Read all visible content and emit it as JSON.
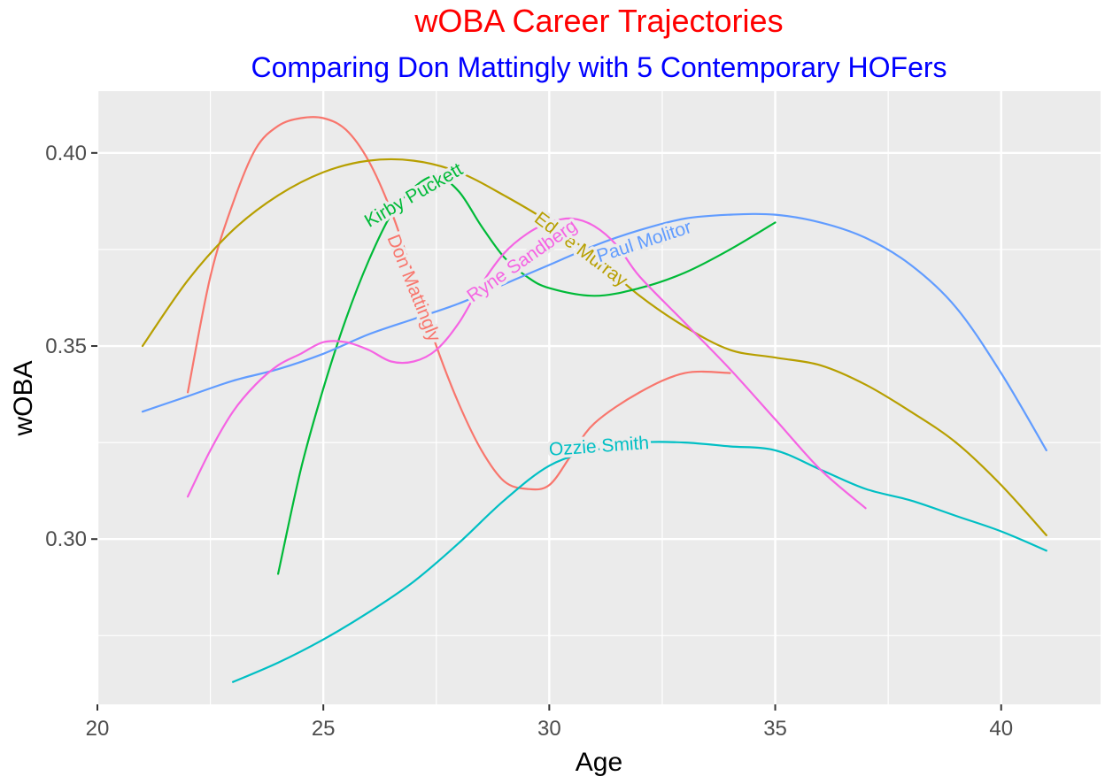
{
  "title": "wOBA Career Trajectories",
  "subtitle": "Comparing Don Mattingly with 5 Contemporary HOFers",
  "colors": {
    "title": "#ff0000",
    "subtitle": "#0000ff",
    "panel": "#ebebeb",
    "grid": "#ffffff"
  },
  "chart_data": {
    "type": "line",
    "xlabel": "Age",
    "ylabel": "wOBA",
    "xlim": [
      20,
      42.2
    ],
    "ylim": [
      0.2572,
      0.416
    ],
    "x_ticks": [
      20,
      25,
      30,
      35,
      40
    ],
    "x_tick_labels": [
      "20",
      "25",
      "30",
      "35",
      "40"
    ],
    "y_ticks": [
      0.3,
      0.35,
      0.4
    ],
    "y_tick_labels": [
      "0.30",
      "0.35",
      "0.40"
    ],
    "grid": true,
    "legend": "none",
    "series": [
      {
        "name": "Don Mattingly",
        "color": "#f8766d",
        "label_position": {
          "x": 27.0,
          "y": 0.365,
          "angle": 68
        },
        "points": [
          [
            22,
            0.338
          ],
          [
            22.5,
            0.368
          ],
          [
            23,
            0.387
          ],
          [
            23.5,
            0.401
          ],
          [
            24,
            0.407
          ],
          [
            24.5,
            0.409
          ],
          [
            25,
            0.409
          ],
          [
            25.5,
            0.406
          ],
          [
            26,
            0.398
          ],
          [
            26.5,
            0.385
          ],
          [
            27,
            0.368
          ],
          [
            27.5,
            0.35
          ],
          [
            28,
            0.335
          ],
          [
            28.5,
            0.323
          ],
          [
            29,
            0.315
          ],
          [
            29.5,
            0.313
          ],
          [
            30,
            0.314
          ],
          [
            30.5,
            0.322
          ],
          [
            31,
            0.33
          ],
          [
            32,
            0.338
          ],
          [
            33,
            0.343
          ],
          [
            34,
            0.343
          ]
        ]
      },
      {
        "name": "Eddie Murray",
        "color": "#b79f00",
        "label_position": {
          "x": 30.7,
          "y": 0.375,
          "angle": 37
        },
        "points": [
          [
            21,
            0.35
          ],
          [
            22,
            0.367
          ],
          [
            23,
            0.38
          ],
          [
            24,
            0.389
          ],
          [
            25,
            0.395
          ],
          [
            26,
            0.398
          ],
          [
            27,
            0.398
          ],
          [
            28,
            0.395
          ],
          [
            29,
            0.389
          ],
          [
            30,
            0.382
          ],
          [
            31,
            0.373
          ],
          [
            32,
            0.363
          ],
          [
            33,
            0.355
          ],
          [
            34,
            0.349
          ],
          [
            35,
            0.347
          ],
          [
            36,
            0.345
          ],
          [
            37,
            0.34
          ],
          [
            38,
            0.333
          ],
          [
            39,
            0.325
          ],
          [
            40,
            0.314
          ],
          [
            41,
            0.301
          ]
        ]
      },
      {
        "name": "Kirby Puckett",
        "color": "#00ba38",
        "label_position": {
          "x": 27.0,
          "y": 0.389,
          "angle": -30
        },
        "points": [
          [
            24,
            0.291
          ],
          [
            24.5,
            0.318
          ],
          [
            25,
            0.339
          ],
          [
            25.5,
            0.357
          ],
          [
            26,
            0.372
          ],
          [
            26.5,
            0.384
          ],
          [
            27,
            0.391
          ],
          [
            27.5,
            0.394
          ],
          [
            28,
            0.39
          ],
          [
            28.5,
            0.381
          ],
          [
            29,
            0.373
          ],
          [
            29.5,
            0.368
          ],
          [
            30,
            0.365
          ],
          [
            31,
            0.363
          ],
          [
            32,
            0.365
          ],
          [
            33,
            0.369
          ],
          [
            34,
            0.375
          ],
          [
            35,
            0.382
          ]
        ]
      },
      {
        "name": "Ozzie Smith",
        "color": "#00bfc4",
        "label_position": {
          "x": 31.1,
          "y": 0.324,
          "angle": -4
        },
        "points": [
          [
            23,
            0.263
          ],
          [
            24,
            0.268
          ],
          [
            25,
            0.274
          ],
          [
            26,
            0.281
          ],
          [
            27,
            0.289
          ],
          [
            28,
            0.299
          ],
          [
            29,
            0.31
          ],
          [
            30,
            0.319
          ],
          [
            31,
            0.323
          ],
          [
            32,
            0.325
          ],
          [
            33,
            0.325
          ],
          [
            34,
            0.324
          ],
          [
            35,
            0.323
          ],
          [
            36,
            0.318
          ],
          [
            37,
            0.313
          ],
          [
            38,
            0.31
          ],
          [
            39,
            0.306
          ],
          [
            40,
            0.302
          ],
          [
            41,
            0.297
          ]
        ]
      },
      {
        "name": "Paul Molitor",
        "color": "#619cff",
        "label_position": {
          "x": 32.1,
          "y": 0.377,
          "angle": -18
        },
        "points": [
          [
            21,
            0.333
          ],
          [
            22,
            0.337
          ],
          [
            23,
            0.341
          ],
          [
            24,
            0.344
          ],
          [
            25,
            0.348
          ],
          [
            26,
            0.353
          ],
          [
            27,
            0.357
          ],
          [
            28,
            0.361
          ],
          [
            29,
            0.366
          ],
          [
            30,
            0.371
          ],
          [
            31,
            0.376
          ],
          [
            32,
            0.38
          ],
          [
            33,
            0.383
          ],
          [
            34,
            0.384
          ],
          [
            35,
            0.384
          ],
          [
            36,
            0.382
          ],
          [
            37,
            0.378
          ],
          [
            38,
            0.371
          ],
          [
            39,
            0.36
          ],
          [
            40,
            0.343
          ],
          [
            41,
            0.323
          ]
        ]
      },
      {
        "name": "Ryne Sandberg",
        "color": "#f564e3",
        "label_position": {
          "x": 29.4,
          "y": 0.372,
          "angle": -35
        },
        "points": [
          [
            22,
            0.311
          ],
          [
            22.5,
            0.323
          ],
          [
            23,
            0.333
          ],
          [
            23.5,
            0.34
          ],
          [
            24,
            0.345
          ],
          [
            24.5,
            0.348
          ],
          [
            25,
            0.351
          ],
          [
            25.5,
            0.351
          ],
          [
            26,
            0.349
          ],
          [
            26.5,
            0.346
          ],
          [
            27,
            0.346
          ],
          [
            27.5,
            0.349
          ],
          [
            28,
            0.356
          ],
          [
            28.5,
            0.366
          ],
          [
            29,
            0.374
          ],
          [
            29.5,
            0.379
          ],
          [
            30,
            0.382
          ],
          [
            30.5,
            0.383
          ],
          [
            31,
            0.381
          ],
          [
            31.5,
            0.376
          ],
          [
            32,
            0.368
          ],
          [
            33,
            0.356
          ],
          [
            34,
            0.344
          ],
          [
            35,
            0.331
          ],
          [
            36,
            0.318
          ],
          [
            37,
            0.308
          ]
        ]
      }
    ]
  }
}
